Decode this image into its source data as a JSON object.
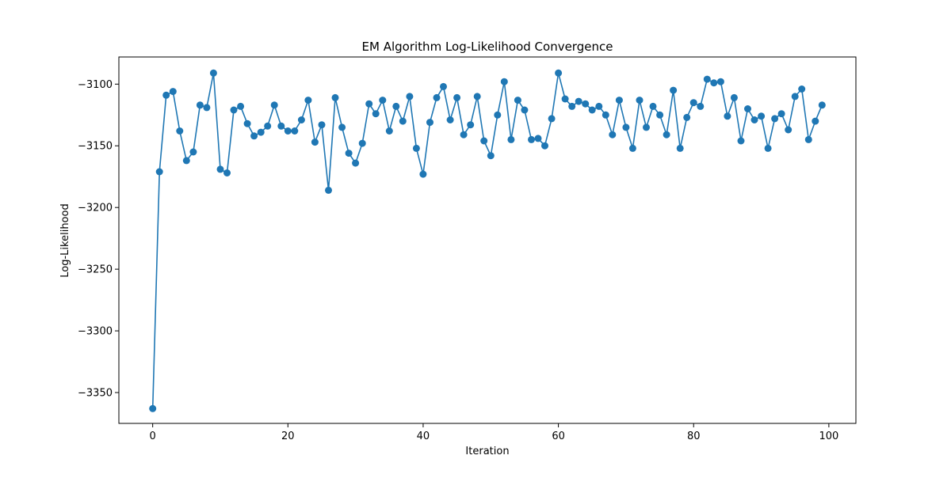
{
  "chart_data": {
    "type": "line",
    "title": "EM Algorithm Log-Likelihood Convergence",
    "xlabel": "Iteration",
    "ylabel": "Log-Likelihood",
    "xlim": [
      -5,
      104
    ],
    "ylim": [
      -3375,
      -3078
    ],
    "xticks": [
      0,
      20,
      40,
      60,
      80,
      100
    ],
    "yticks": [
      -3350,
      -3300,
      -3250,
      -3200,
      -3150,
      -3100
    ],
    "xtick_labels": [
      "0",
      "20",
      "40",
      "60",
      "80",
      "100"
    ],
    "ytick_labels": [
      "−3350",
      "−3300",
      "−3250",
      "−3200",
      "−3150",
      "−3100"
    ],
    "grid": false,
    "markers": true,
    "series": [
      {
        "color": "#1f77b4",
        "x": [
          0,
          1,
          2,
          3,
          4,
          5,
          6,
          7,
          8,
          9,
          10,
          11,
          12,
          13,
          14,
          15,
          16,
          17,
          18,
          19,
          20,
          21,
          22,
          23,
          24,
          25,
          26,
          27,
          28,
          29,
          30,
          31,
          32,
          33,
          34,
          35,
          36,
          37,
          38,
          39,
          40,
          41,
          42,
          43,
          44,
          45,
          46,
          47,
          48,
          49,
          50,
          51,
          52,
          53,
          54,
          55,
          56,
          57,
          58,
          59,
          60,
          61,
          62,
          63,
          64,
          65,
          66,
          67,
          68,
          69,
          70,
          71,
          72,
          73,
          74,
          75,
          76,
          77,
          78,
          79,
          80,
          81,
          82,
          83,
          84,
          85,
          86,
          87,
          88,
          89,
          90,
          91,
          92,
          93,
          94,
          95,
          96,
          97,
          98,
          99
        ],
        "y": [
          -3363,
          -3171,
          -3109,
          -3106,
          -3138,
          -3162,
          -3155,
          -3117,
          -3119,
          -3091,
          -3169,
          -3172,
          -3121,
          -3118,
          -3132,
          -3142,
          -3139,
          -3134,
          -3117,
          -3134,
          -3138,
          -3138,
          -3129,
          -3113,
          -3147,
          -3133,
          -3186,
          -3111,
          -3135,
          -3156,
          -3164,
          -3148,
          -3116,
          -3124,
          -3113,
          -3138,
          -3118,
          -3130,
          -3110,
          -3152,
          -3173,
          -3131,
          -3111,
          -3102,
          -3129,
          -3111,
          -3141,
          -3133,
          -3110,
          -3146,
          -3158,
          -3125,
          -3098,
          -3145,
          -3113,
          -3121,
          -3145,
          -3144,
          -3150,
          -3128,
          -3091,
          -3112,
          -3118,
          -3114,
          -3116,
          -3121,
          -3118,
          -3125,
          -3141,
          -3113,
          -3135,
          -3152,
          -3113,
          -3135,
          -3118,
          -3125,
          -3141,
          -3105,
          -3152,
          -3127,
          -3115,
          -3118,
          -3096,
          -3099,
          -3098,
          -3126,
          -3111,
          -3146,
          -3120,
          -3129,
          -3126,
          -3152,
          -3128,
          -3124,
          -3137,
          -3110,
          -3104,
          -3145,
          -3130,
          -3117
        ]
      }
    ]
  }
}
